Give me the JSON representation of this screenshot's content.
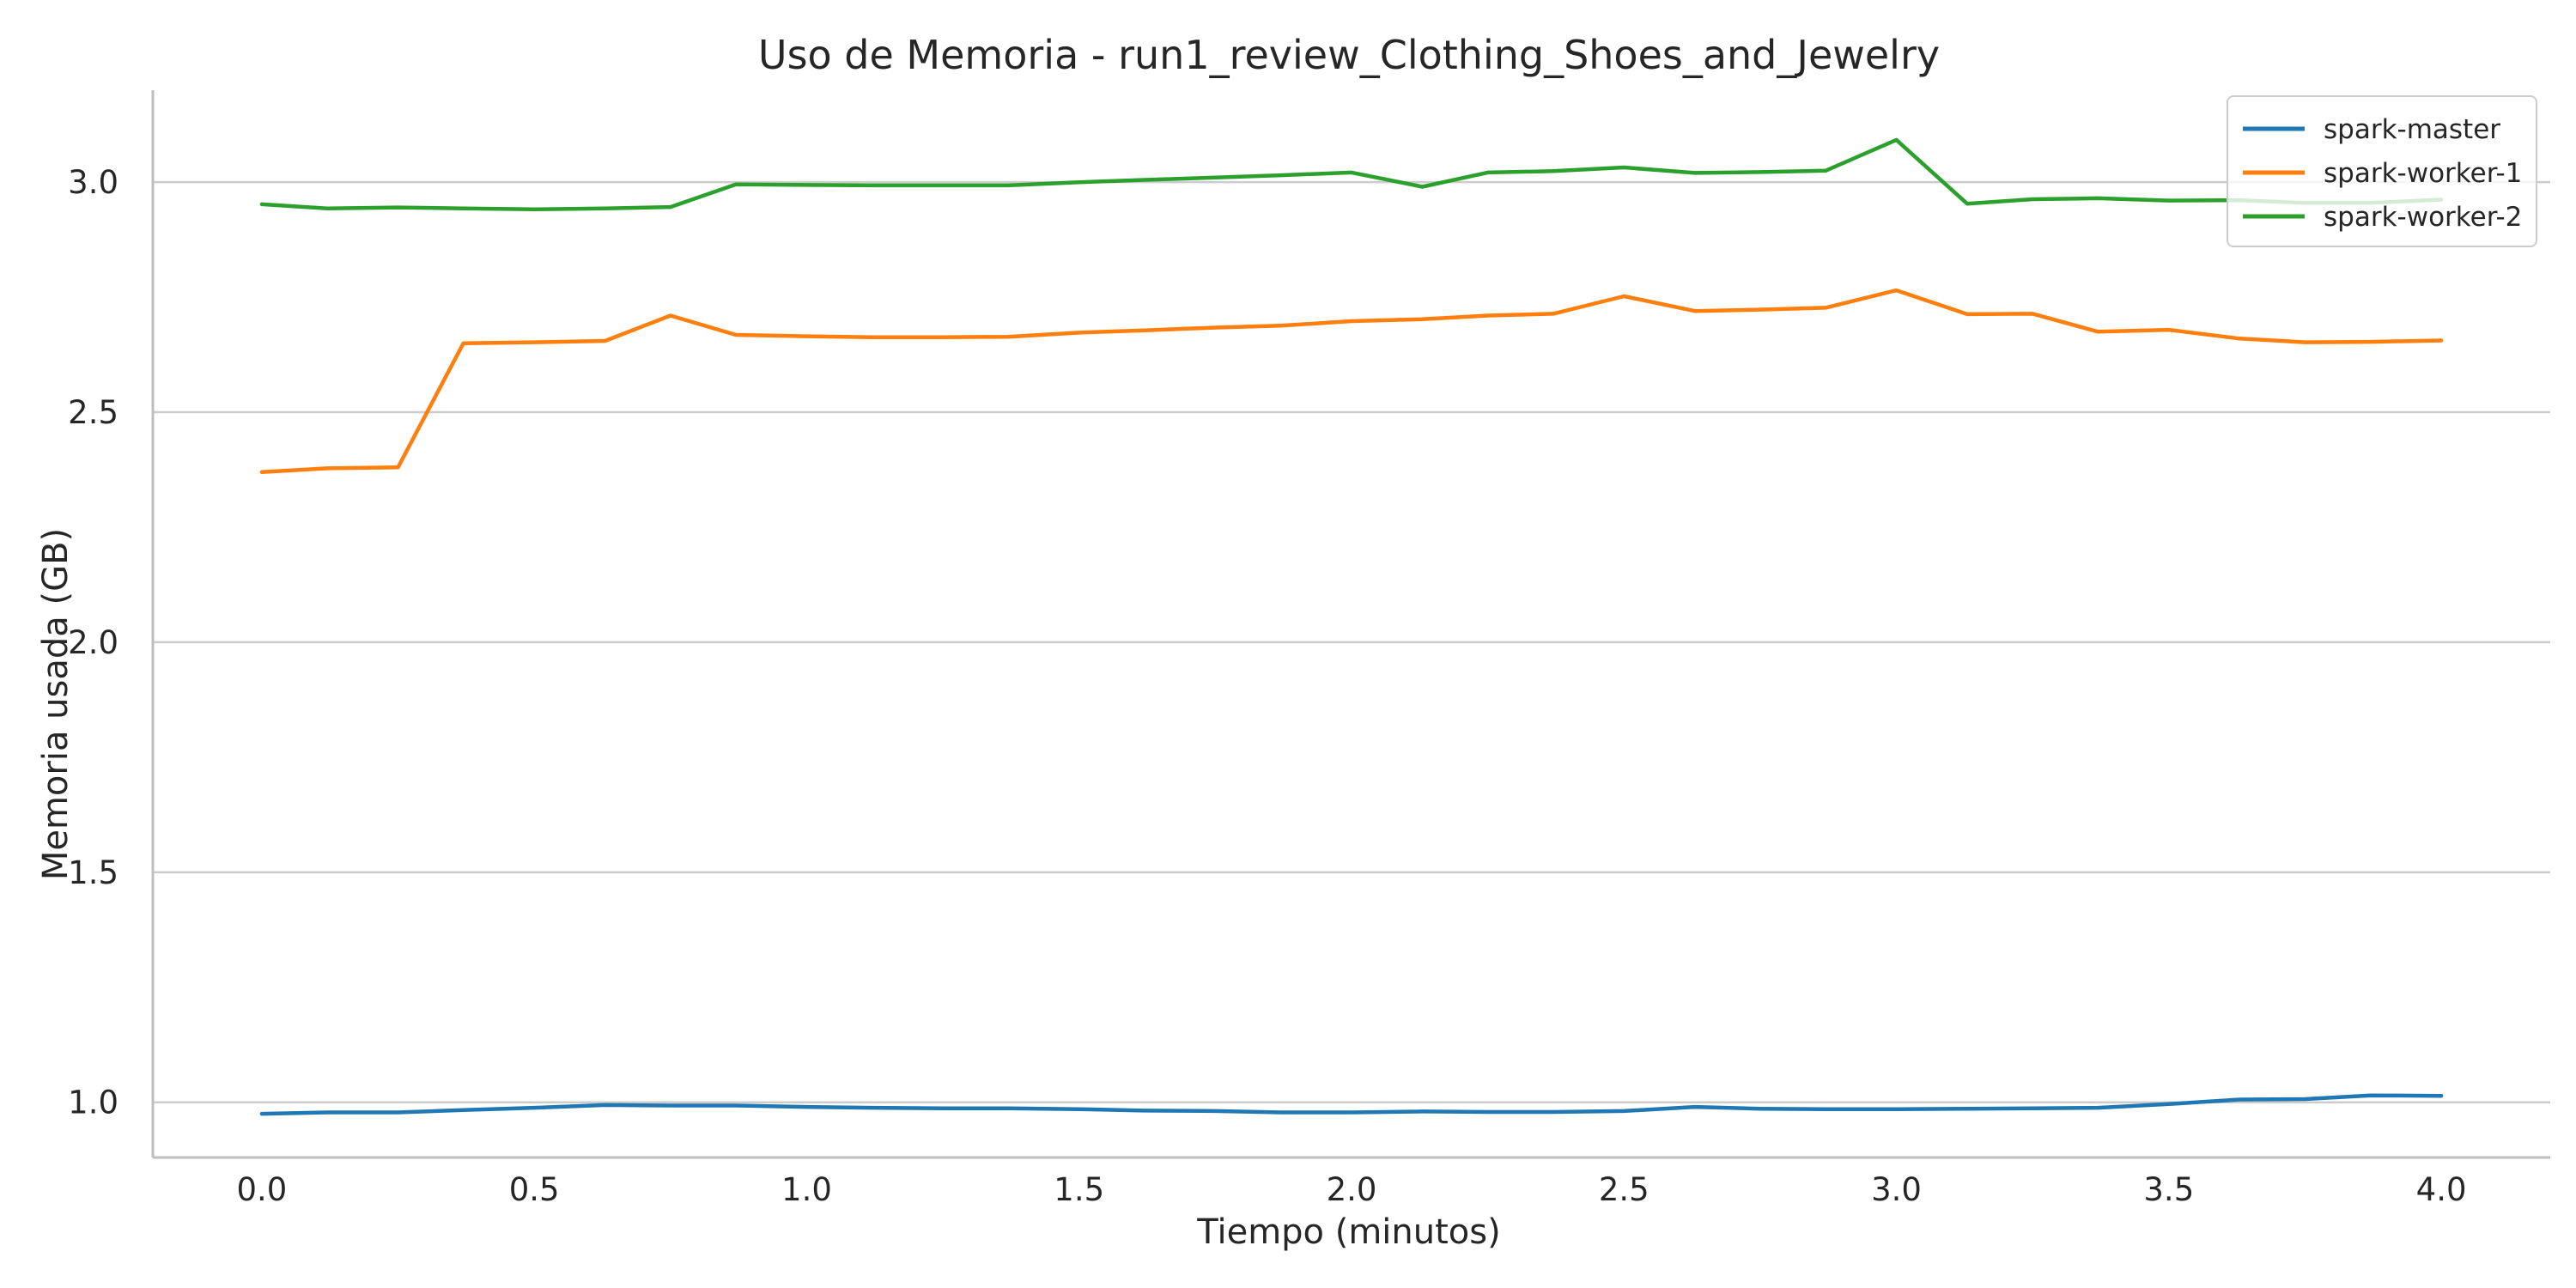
{
  "chart_data": {
    "type": "line",
    "title": "Uso de Memoria - run1_review_Clothing_Shoes_and_Jewelry",
    "xlabel": "Tiempo (minutos)",
    "ylabel": "Memoria usada (GB)",
    "xlim": [
      -0.2,
      4.2
    ],
    "ylim": [
      0.88,
      3.2
    ],
    "x_ticks": [
      0.0,
      0.5,
      1.0,
      1.5,
      2.0,
      2.5,
      3.0,
      3.5,
      4.0
    ],
    "x_tick_labels": [
      "0.0",
      "0.5",
      "1.0",
      "1.5",
      "2.0",
      "2.5",
      "3.0",
      "3.5",
      "4.0"
    ],
    "y_ticks": [
      1.0,
      1.5,
      2.0,
      2.5,
      3.0
    ],
    "y_tick_labels": [
      "1.0",
      "1.5",
      "2.0",
      "2.5",
      "3.0"
    ],
    "grid": "horizontal",
    "legend_position": "top-right",
    "x": [
      0.0,
      0.12,
      0.25,
      0.37,
      0.5,
      0.63,
      0.75,
      0.87,
      1.0,
      1.12,
      1.25,
      1.37,
      1.5,
      1.62,
      1.75,
      1.87,
      2.0,
      2.13,
      2.25,
      2.37,
      2.5,
      2.63,
      2.75,
      2.87,
      3.0,
      3.13,
      3.25,
      3.37,
      3.5,
      3.63,
      3.75,
      3.87,
      4.0
    ],
    "series": [
      {
        "name": "spark-master",
        "color": "#1f77b4",
        "values": [
          0.975,
          0.978,
          0.978,
          0.983,
          0.988,
          0.994,
          0.993,
          0.993,
          0.99,
          0.988,
          0.987,
          0.987,
          0.985,
          0.982,
          0.981,
          0.978,
          0.978,
          0.98,
          0.979,
          0.979,
          0.981,
          0.99,
          0.986,
          0.985,
          0.985,
          0.986,
          0.987,
          0.988,
          0.996,
          1.006,
          1.007,
          1.015,
          1.014
        ]
      },
      {
        "name": "spark-worker-1",
        "color": "#ff7f0e",
        "values": [
          2.37,
          2.378,
          2.38,
          2.65,
          2.652,
          2.655,
          2.71,
          2.668,
          2.665,
          2.663,
          2.663,
          2.664,
          2.673,
          2.678,
          2.684,
          2.688,
          2.698,
          2.702,
          2.71,
          2.714,
          2.752,
          2.72,
          2.723,
          2.727,
          2.765,
          2.713,
          2.714,
          2.675,
          2.679,
          2.66,
          2.652,
          2.653,
          2.656
        ]
      },
      {
        "name": "spark-worker-2",
        "color": "#2ca02c",
        "values": [
          2.952,
          2.943,
          2.945,
          2.943,
          2.941,
          2.943,
          2.946,
          2.995,
          2.994,
          2.993,
          2.993,
          2.993,
          3.0,
          3.005,
          3.01,
          3.015,
          3.021,
          2.99,
          3.021,
          3.024,
          3.032,
          3.02,
          3.022,
          3.025,
          3.092,
          2.953,
          2.963,
          2.965,
          2.96,
          2.961,
          2.955,
          2.955,
          2.962
        ]
      }
    ]
  }
}
